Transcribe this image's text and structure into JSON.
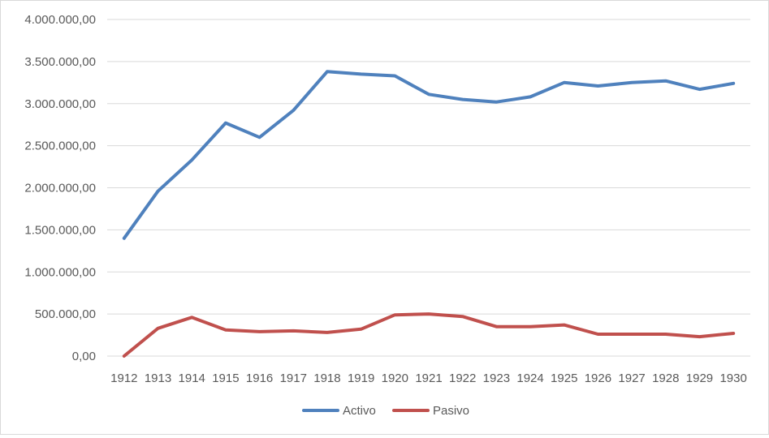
{
  "chart_data": {
    "type": "line",
    "title": "",
    "xlabel": "",
    "ylabel": "",
    "categories": [
      "1912",
      "1913",
      "1914",
      "1915",
      "1916",
      "1917",
      "1918",
      "1919",
      "1920",
      "1921",
      "1922",
      "1923",
      "1924",
      "1925",
      "1926",
      "1927",
      "1928",
      "1929",
      "1930"
    ],
    "ylim": [
      0,
      4000000
    ],
    "yticks": [
      0,
      500000,
      1000000,
      1500000,
      2000000,
      2500000,
      3000000,
      3500000,
      4000000
    ],
    "ytick_labels": [
      "0,00",
      "500.000,00",
      "1.000.000,00",
      "1.500.000,00",
      "2.000.000,00",
      "2.500.000,00",
      "3.000.000,00",
      "3.500.000,00",
      "4.000.000,00"
    ],
    "grid": true,
    "legend_position": "bottom",
    "series": [
      {
        "name": "Activo",
        "color": "#4f81bd",
        "values": [
          1400000,
          1960000,
          2330000,
          2770000,
          2600000,
          2920000,
          3380000,
          3350000,
          3330000,
          3110000,
          3050000,
          3020000,
          3080000,
          3250000,
          3210000,
          3250000,
          3270000,
          3170000,
          3240000
        ]
      },
      {
        "name": "Pasivo",
        "color": "#c0504d",
        "values": [
          0,
          330000,
          460000,
          310000,
          290000,
          300000,
          280000,
          320000,
          490000,
          500000,
          470000,
          350000,
          350000,
          370000,
          260000,
          260000,
          260000,
          230000,
          270000
        ]
      }
    ]
  }
}
